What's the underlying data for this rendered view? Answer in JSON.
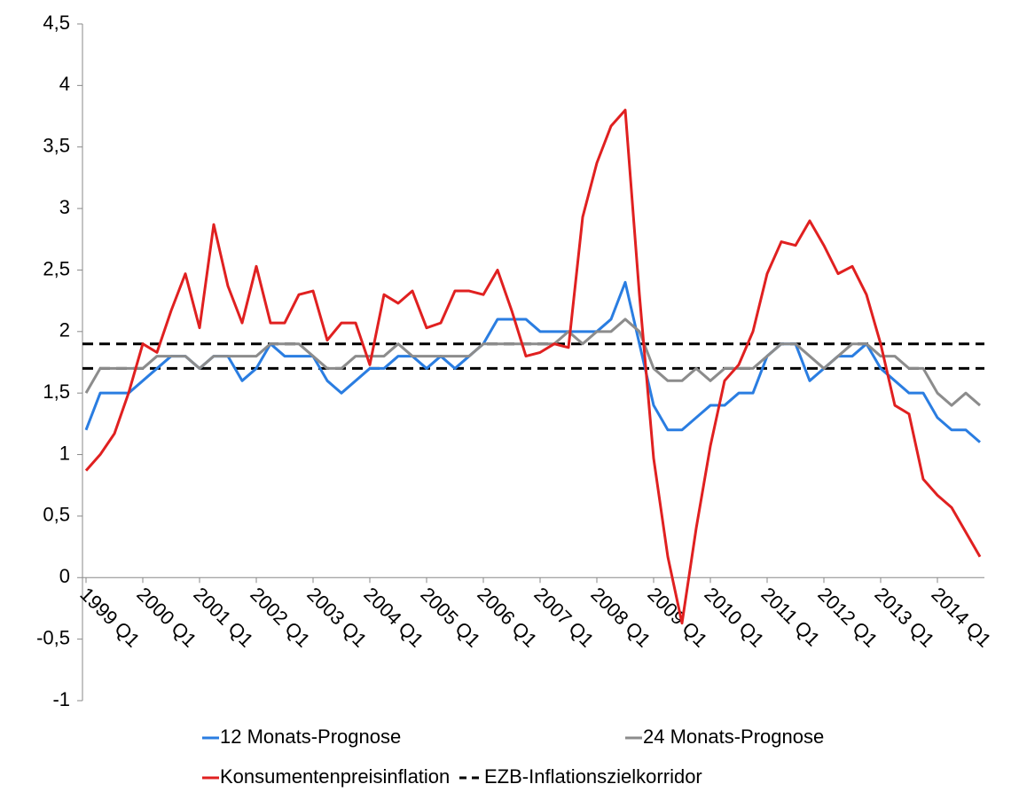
{
  "chart_data": {
    "type": "line",
    "categories": [
      "1999 Q1",
      null,
      null,
      null,
      "2000 Q1",
      null,
      null,
      null,
      "2001 Q1",
      null,
      null,
      null,
      "2002 Q1",
      null,
      null,
      null,
      "2003 Q1",
      null,
      null,
      null,
      "2004 Q1",
      null,
      null,
      null,
      "2005 Q1",
      null,
      null,
      null,
      "2006 Q1",
      null,
      null,
      null,
      "2007 Q1",
      null,
      null,
      null,
      "2008 Q1",
      null,
      null,
      null,
      "2009 Q1",
      null,
      null,
      null,
      "2010 Q1",
      null,
      null,
      null,
      "2011 Q1",
      null,
      null,
      null,
      "2012 Q1",
      null,
      null,
      null,
      "2013 Q1",
      null,
      null,
      null,
      "2014 Q1",
      null,
      null,
      null
    ],
    "series": [
      {
        "name": "12 Monats-Prognose",
        "color": "#2a7de1",
        "values": [
          1.2,
          1.5,
          1.5,
          1.5,
          1.6,
          1.7,
          1.8,
          1.8,
          1.7,
          1.8,
          1.8,
          1.6,
          1.7,
          1.9,
          1.8,
          1.8,
          1.8,
          1.6,
          1.5,
          1.6,
          1.7,
          1.7,
          1.8,
          1.8,
          1.7,
          1.8,
          1.7,
          1.8,
          1.9,
          2.1,
          2.1,
          2.1,
          2.0,
          2.0,
          2.0,
          2.0,
          2.0,
          2.1,
          2.4,
          1.9,
          1.4,
          1.2,
          1.2,
          1.3,
          1.4,
          1.4,
          1.5,
          1.5,
          1.8,
          1.9,
          1.9,
          1.6,
          1.7,
          1.8,
          1.8,
          1.9,
          1.7,
          1.6,
          1.5,
          1.5,
          1.3,
          1.2,
          1.2,
          1.1
        ]
      },
      {
        "name": "24 Monats-Prognose",
        "color": "#8c8c8c",
        "values": [
          1.5,
          1.7,
          1.7,
          1.7,
          1.7,
          1.8,
          1.8,
          1.8,
          1.7,
          1.8,
          1.8,
          1.8,
          1.8,
          1.9,
          1.9,
          1.9,
          1.8,
          1.7,
          1.7,
          1.8,
          1.8,
          1.8,
          1.9,
          1.8,
          1.8,
          1.8,
          1.8,
          1.8,
          1.9,
          1.9,
          1.9,
          1.9,
          1.9,
          1.9,
          2.0,
          1.9,
          2.0,
          2.0,
          2.1,
          2.0,
          1.7,
          1.6,
          1.6,
          1.7,
          1.6,
          1.7,
          1.7,
          1.7,
          1.8,
          1.9,
          1.9,
          1.8,
          1.7,
          1.8,
          1.9,
          1.9,
          1.8,
          1.8,
          1.7,
          1.7,
          1.5,
          1.4,
          1.5,
          1.4
        ]
      },
      {
        "name": "Konsumentenpreisinflation",
        "color": "#e02020",
        "values": [
          0.87,
          1.0,
          1.17,
          1.5,
          1.9,
          1.83,
          2.17,
          2.47,
          2.03,
          2.87,
          2.37,
          2.07,
          2.53,
          2.07,
          2.07,
          2.3,
          2.33,
          1.93,
          2.07,
          2.07,
          1.73,
          2.3,
          2.23,
          2.33,
          2.03,
          2.07,
          2.33,
          2.33,
          2.3,
          2.5,
          2.17,
          1.8,
          1.83,
          1.9,
          1.87,
          2.93,
          3.37,
          3.67,
          3.8,
          2.3,
          0.97,
          0.17,
          -0.37,
          0.4,
          1.07,
          1.6,
          1.73,
          2.0,
          2.47,
          2.73,
          2.7,
          2.9,
          2.7,
          2.47,
          2.53,
          2.3,
          1.9,
          1.4,
          1.33,
          0.8,
          0.67,
          0.57,
          0.37,
          0.17
        ]
      }
    ],
    "reference_lines": {
      "name": "EZB-Inflationszielkorridor",
      "color": "#000000",
      "values": [
        1.9,
        1.7
      ]
    },
    "ylim": [
      -1,
      4.5
    ],
    "yticks": [
      -1,
      {
        "value": -0.5,
        "label": "-0,5"
      },
      0,
      {
        "value": 0.5,
        "label": "0,5"
      },
      1,
      {
        "value": 1.5,
        "label": "1,5"
      },
      2,
      {
        "value": 2.5,
        "label": "2,5"
      },
      3,
      {
        "value": 3.5,
        "label": "3,5"
      },
      4,
      {
        "value": 4.5,
        "label": "4,5"
      }
    ],
    "grid": false
  }
}
